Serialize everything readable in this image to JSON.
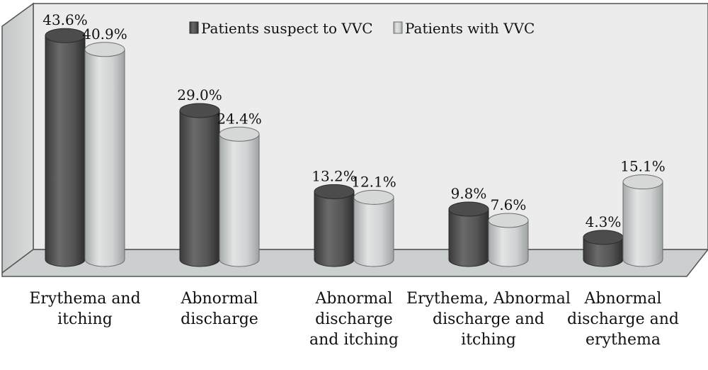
{
  "chart_data": {
    "type": "bar",
    "style": "3d-cylinder",
    "categories": [
      [
        "Erythema and",
        "itching"
      ],
      [
        "Abnormal",
        "discharge"
      ],
      [
        "Abnormal",
        "discharge",
        "and itching"
      ],
      [
        "Erythema, Abnormal",
        "discharge and",
        "itching"
      ],
      [
        "Abnormal",
        "discharge and",
        "erythema"
      ]
    ],
    "series": [
      {
        "name": "Patients suspect to VVC",
        "values": [
          43.6,
          29.0,
          13.2,
          9.8,
          4.3
        ],
        "labels": [
          "43.6%",
          "29.0%",
          "13.2%",
          "9.8%",
          "4.3%"
        ],
        "color": "#5a5a5a"
      },
      {
        "name": "Patients with VVC",
        "values": [
          40.9,
          24.4,
          12.1,
          7.6,
          15.1
        ],
        "labels": [
          "40.9%",
          "24.4%",
          "12.1%",
          "7.6%",
          "15.1%"
        ],
        "color": "#c8cbcb"
      }
    ],
    "ylim": [
      0,
      45
    ],
    "grid": false,
    "legend": "top"
  }
}
